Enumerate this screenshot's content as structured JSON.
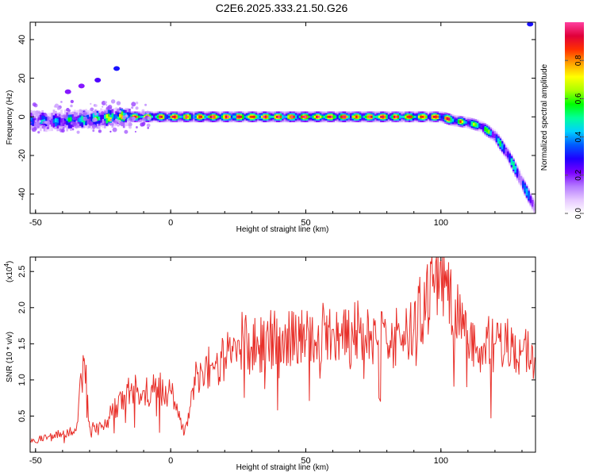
{
  "title": "C2E6.2025.333.21.50.G26",
  "chart_data": [
    {
      "type": "heatmap",
      "name": "spectrogram",
      "xlabel": "Height of straight line (km)",
      "ylabel": "Frequency (Hz)",
      "xlim": [
        -52,
        135
      ],
      "ylim": [
        -50,
        49
      ],
      "xticks": [
        -50,
        0,
        50,
        100
      ],
      "yticks": [
        -40,
        -20,
        0,
        20,
        40
      ],
      "xtick_labels": [
        "-50",
        "0",
        "50",
        "100"
      ],
      "ytick_labels": [
        "-40",
        "-20",
        "0",
        "20",
        "40"
      ],
      "colorbar": {
        "label": "Normalized spectral amplitude",
        "range": [
          0,
          1
        ],
        "ticks": [
          0.0,
          0.2,
          0.4,
          0.6,
          0.8
        ],
        "tick_labels": [
          "0.0",
          "0.2",
          "0.4",
          "0.6",
          "0.8"
        ],
        "colors": [
          "#ffffff",
          "#e6c8ff",
          "#b47aff",
          "#7a00ff",
          "#1f00ff",
          "#005aff",
          "#00d0ff",
          "#00ff9a",
          "#00ff00",
          "#aaff00",
          "#ffff00",
          "#ffa000",
          "#ff3000",
          "#e0003a",
          "#ff40a0"
        ]
      },
      "ridge": {
        "x": [
          -52,
          -40,
          -30,
          -20,
          -10,
          0,
          20,
          50,
          80,
          100,
          105,
          110,
          115,
          120,
          125,
          130,
          135
        ],
        "frequency": [
          -2,
          -2,
          -1,
          0,
          0,
          0,
          0,
          0,
          0,
          0,
          -2,
          -3,
          -5,
          -10,
          -20,
          -34,
          -48
        ],
        "amplitude": [
          0.4,
          0.45,
          0.55,
          0.65,
          0.8,
          0.85,
          0.9,
          0.9,
          0.88,
          0.85,
          0.75,
          0.7,
          0.6,
          0.5,
          0.45,
          0.4,
          0.35
        ]
      },
      "outliers": [
        {
          "x": -20,
          "frequency": 25,
          "amplitude": 0.3
        },
        {
          "x": -27,
          "frequency": 19,
          "amplitude": 0.25
        },
        {
          "x": -33,
          "frequency": 16,
          "amplitude": 0.2
        },
        {
          "x": -38,
          "frequency": 13,
          "amplitude": 0.2
        },
        {
          "x": 133,
          "frequency": 48,
          "amplitude": 0.3
        }
      ]
    },
    {
      "type": "line",
      "name": "snr",
      "xlabel": "Height of straight line (km)",
      "ylabel": "SNR (10 * v/v)",
      "y_multiplier": "(x10",
      "y_multiplier_exp": "4",
      "y_multiplier_close": ")",
      "xlim": [
        -52,
        135
      ],
      "ylim": [
        0,
        27000
      ],
      "xticks": [
        -50,
        0,
        50,
        100
      ],
      "yticks": [
        5000,
        10000,
        15000,
        20000,
        25000
      ],
      "xtick_labels": [
        "-50",
        "0",
        "50",
        "100"
      ],
      "ytick_labels": [
        "0.5",
        "1.0",
        "1.5",
        "2.0",
        "2.5"
      ],
      "line_color": "#e8302a",
      "series": [
        {
          "name": "SNR",
          "x": [
            -52,
            -45,
            -40,
            -35,
            -32,
            -30,
            -25,
            -20,
            -15,
            -10,
            -5,
            0,
            5,
            10,
            15,
            20,
            25,
            30,
            40,
            50,
            60,
            70,
            80,
            90,
            100,
            110,
            120,
            130,
            135
          ],
          "values": [
            1500,
            2200,
            2500,
            3000,
            13000,
            3500,
            3500,
            6500,
            8500,
            8500,
            9000,
            8500,
            2500,
            11000,
            12000,
            13000,
            15500,
            14500,
            16000,
            15500,
            17000,
            16500,
            15000,
            17000,
            26500,
            15000,
            15000,
            14000,
            13000
          ]
        }
      ]
    }
  ]
}
